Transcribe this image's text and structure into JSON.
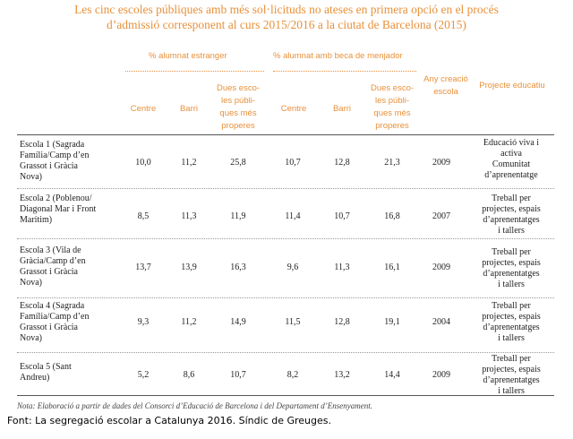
{
  "title": {
    "line1": "Les cinc escoles públiques amb més sol·licituds no ateses en primera opció en el procés",
    "line2": "d’admissió corresponent al curs 2015/2016 a la ciutat de Barcelona (2015)"
  },
  "group_headers": {
    "estranger": "% alumnat estranger",
    "beca": "% alumnat amb beca de menjador"
  },
  "columns": {
    "centre": "Centre",
    "barri": "Barri",
    "dues_escoles": [
      "Dues esco-",
      "les públi-",
      "ques més",
      "properes"
    ],
    "centre2": "Centre",
    "barri2": "Barri",
    "dues_escoles2": [
      "Dues esco-",
      "les públi-",
      "ques més",
      "properes"
    ],
    "any_creacio": [
      "Any creació",
      "escola"
    ],
    "projecte": "Projecte educatiu"
  },
  "rows": [
    {
      "name": [
        "Escola 1 (Sagrada",
        "Família/Camp d’en",
        "Grassot i Gràcia",
        "Nova)"
      ],
      "values": [
        "10,0",
        "11,2",
        "25,8",
        "10,7",
        "12,8",
        "21,3",
        "2009"
      ],
      "projecte": [
        "Educació viva i",
        "activa",
        "Comunitat",
        "d’aprenentatge"
      ]
    },
    {
      "name": [
        "Escola 2 (Poblenou/",
        "Diagonal Mar i Front",
        "Marítim)"
      ],
      "values": [
        "8,5",
        "11,3",
        "11,9",
        "11,4",
        "10,7",
        "16,8",
        "2007"
      ],
      "projecte": [
        "Treball per",
        "projectes, espais",
        "d’aprenentatges",
        "i tallers"
      ]
    },
    {
      "name": [
        "Escola 3 (Vila de",
        "Gràcia/Camp d’en",
        "Grassot i Gràcia",
        "Nova)"
      ],
      "values": [
        "13,7",
        "13,9",
        "16,3",
        "9,6",
        "11,3",
        "16,1",
        "2009"
      ],
      "projecte": [
        "Treball per",
        "projectes, espais",
        "d’aprenentatges",
        "i tallers"
      ]
    },
    {
      "name": [
        "Escola 4 (Sagrada",
        "Família/Camp d’en",
        "Grassot i Gràcia",
        "Nova)"
      ],
      "values": [
        "9,3",
        "11,2",
        "14,9",
        "11,5",
        "12,8",
        "19,1",
        "2004"
      ],
      "projecte": [
        "Treball per",
        "projectes, espais",
        "d’aprenentatges",
        "i tallers"
      ]
    },
    {
      "name": [
        "Escola 5 (Sant",
        "Andreu)"
      ],
      "values": [
        "5,2",
        "8,6",
        "10,7",
        "8,2",
        "13,2",
        "14,4",
        "2009"
      ],
      "projecte": [
        "Treball per",
        "projectes, espais",
        "d’aprenentatges",
        "i tallers"
      ]
    }
  ],
  "note": "Nota: Elaboració a partir de dades del Consorci d’Educació de Barcelona i del Departament d’Ensenyament.",
  "source": "Font: La segregació escolar a Catalunya 2016. Síndic de Greuges."
}
